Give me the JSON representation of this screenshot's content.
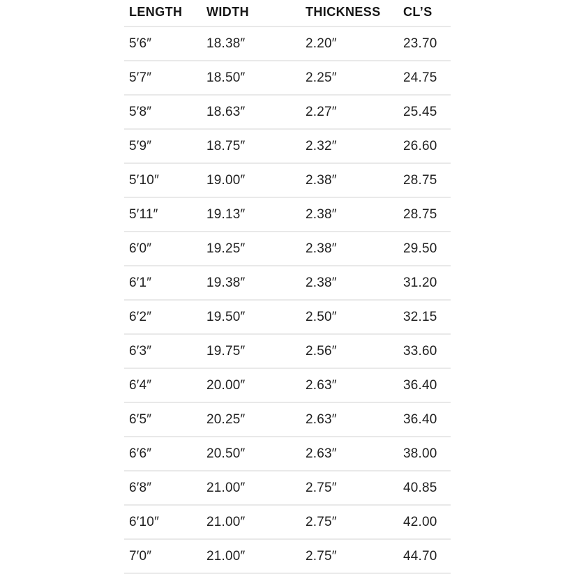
{
  "chart_data": {
    "type": "table",
    "columns": [
      "LENGTH",
      "WIDTH",
      "THICKNESS",
      "CL’S"
    ],
    "rows": [
      [
        "5′6″",
        "18.38″",
        "2.20″",
        "23.70"
      ],
      [
        "5′7″",
        "18.50″",
        "2.25″",
        "24.75"
      ],
      [
        "5′8″",
        "18.63″",
        "2.27″",
        "25.45"
      ],
      [
        "5′9″",
        "18.75″",
        "2.32″",
        "26.60"
      ],
      [
        "5′10″",
        "19.00″",
        "2.38″",
        "28.75"
      ],
      [
        "5′11″",
        "19.13″",
        "2.38″",
        "28.75"
      ],
      [
        "6′0″",
        "19.25″",
        "2.38″",
        "29.50"
      ],
      [
        "6′1″",
        "19.38″",
        "2.38″",
        "31.20"
      ],
      [
        "6′2″",
        "19.50″",
        "2.50″",
        "32.15"
      ],
      [
        "6′3″",
        "19.75″",
        "2.56″",
        "33.60"
      ],
      [
        "6′4″",
        "20.00″",
        "2.63″",
        "36.40"
      ],
      [
        "6′5″",
        "20.25″",
        "2.63″",
        "36.40"
      ],
      [
        "6′6″",
        "20.50″",
        "2.63″",
        "38.00"
      ],
      [
        "6′8″",
        "21.00″",
        "2.75″",
        "40.85"
      ],
      [
        "6′10″",
        "21.00″",
        "2.75″",
        "42.00"
      ],
      [
        "7′0″",
        "21.00″",
        "2.75″",
        "44.70"
      ]
    ],
    "layout": {
      "grid": "horizontal-dividers-only",
      "header_position": "top",
      "column_alignment": "left"
    }
  },
  "colors": {
    "background": "#ffffff",
    "header_text": "#161616",
    "body_text": "#212121",
    "divider": "#e9e9e9"
  }
}
